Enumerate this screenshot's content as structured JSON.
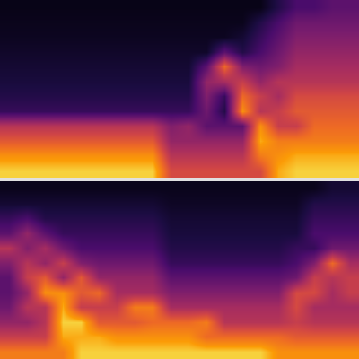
{
  "chart_data": [
    {
      "type": "heatmap",
      "tick_labels": false,
      "zlim": [
        0,
        1
      ],
      "cells": [
        [
          0.04,
          0.04,
          0.04,
          0.04,
          0.04,
          0.04,
          0.04,
          0.04,
          0.04,
          0.04,
          0.04,
          0.04,
          0.04,
          0.04,
          0.04,
          0.15,
          0.25,
          0.25,
          0.3,
          0.3
        ],
        [
          0.05,
          0.05,
          0.05,
          0.05,
          0.05,
          0.05,
          0.05,
          0.05,
          0.05,
          0.05,
          0.05,
          0.05,
          0.05,
          0.05,
          0.15,
          0.25,
          0.35,
          0.35,
          0.35,
          0.35
        ],
        [
          0.06,
          0.06,
          0.06,
          0.06,
          0.06,
          0.06,
          0.06,
          0.06,
          0.06,
          0.06,
          0.06,
          0.06,
          0.06,
          0.1,
          0.2,
          0.3,
          0.4,
          0.4,
          0.4,
          0.4
        ],
        [
          0.08,
          0.08,
          0.08,
          0.08,
          0.08,
          0.08,
          0.08,
          0.08,
          0.08,
          0.08,
          0.08,
          0.08,
          0.3,
          0.15,
          0.25,
          0.35,
          0.45,
          0.45,
          0.45,
          0.45
        ],
        [
          0.1,
          0.1,
          0.1,
          0.1,
          0.1,
          0.1,
          0.1,
          0.1,
          0.1,
          0.1,
          0.1,
          0.3,
          0.75,
          0.4,
          0.35,
          0.4,
          0.5,
          0.5,
          0.5,
          0.5
        ],
        [
          0.12,
          0.12,
          0.12,
          0.12,
          0.12,
          0.12,
          0.12,
          0.12,
          0.12,
          0.12,
          0.12,
          0.45,
          0.5,
          0.6,
          0.45,
          0.55,
          0.55,
          0.55,
          0.55,
          0.55
        ],
        [
          0.15,
          0.15,
          0.15,
          0.15,
          0.15,
          0.15,
          0.15,
          0.15,
          0.15,
          0.15,
          0.15,
          0.4,
          0.2,
          0.75,
          0.6,
          0.5,
          0.65,
          0.65,
          0.65,
          0.65
        ],
        [
          0.2,
          0.2,
          0.2,
          0.2,
          0.2,
          0.2,
          0.2,
          0.2,
          0.2,
          0.2,
          0.2,
          0.35,
          0.15,
          0.85,
          0.55,
          0.6,
          0.7,
          0.7,
          0.7,
          0.7
        ],
        [
          0.55,
          0.55,
          0.55,
          0.55,
          0.55,
          0.55,
          0.55,
          0.55,
          0.55,
          0.4,
          0.45,
          0.3,
          0.3,
          0.3,
          0.85,
          0.6,
          0.6,
          0.75,
          0.75,
          0.75
        ],
        [
          0.7,
          0.7,
          0.7,
          0.7,
          0.7,
          0.7,
          0.7,
          0.7,
          0.7,
          0.45,
          0.45,
          0.45,
          0.45,
          0.45,
          0.9,
          0.8,
          0.8,
          0.8,
          0.8,
          0.8
        ],
        [
          0.85,
          0.85,
          0.85,
          0.85,
          0.85,
          0.85,
          0.85,
          0.85,
          0.85,
          0.55,
          0.55,
          0.55,
          0.55,
          0.55,
          0.8,
          0.85,
          0.9,
          0.9,
          0.9,
          0.9
        ],
        [
          0.95,
          0.95,
          0.95,
          0.95,
          0.95,
          0.95,
          0.95,
          0.95,
          0.95,
          0.65,
          0.65,
          0.65,
          0.65,
          0.65,
          0.65,
          0.9,
          0.95,
          0.95,
          0.95,
          0.95
        ]
      ]
    },
    {
      "type": "heatmap",
      "tick_labels": false,
      "zlim": [
        0,
        1
      ],
      "cells": [
        [
          0.05,
          0.05,
          0.05,
          0.05,
          0.05,
          0.05,
          0.05,
          0.05,
          0.05,
          0.05,
          0.05,
          0.05,
          0.05,
          0.05,
          0.05,
          0.05,
          0.05,
          0.05,
          0.1,
          0.1
        ],
        [
          0.1,
          0.1,
          0.1,
          0.1,
          0.1,
          0.1,
          0.1,
          0.1,
          0.1,
          0.07,
          0.07,
          0.07,
          0.07,
          0.07,
          0.07,
          0.07,
          0.07,
          0.15,
          0.15,
          0.15
        ],
        [
          0.2,
          0.25,
          0.15,
          0.15,
          0.15,
          0.15,
          0.15,
          0.15,
          0.15,
          0.1,
          0.1,
          0.1,
          0.1,
          0.1,
          0.1,
          0.1,
          0.1,
          0.2,
          0.2,
          0.2
        ],
        [
          0.3,
          0.45,
          0.3,
          0.2,
          0.2,
          0.2,
          0.2,
          0.2,
          0.2,
          0.12,
          0.12,
          0.12,
          0.12,
          0.12,
          0.12,
          0.12,
          0.12,
          0.25,
          0.25,
          0.25
        ],
        [
          0.55,
          0.4,
          0.5,
          0.35,
          0.25,
          0.25,
          0.25,
          0.25,
          0.25,
          0.15,
          0.15,
          0.15,
          0.15,
          0.15,
          0.15,
          0.15,
          0.2,
          0.2,
          0.35,
          0.35
        ],
        [
          0.4,
          0.55,
          0.45,
          0.6,
          0.4,
          0.35,
          0.35,
          0.35,
          0.35,
          0.2,
          0.2,
          0.2,
          0.2,
          0.2,
          0.2,
          0.2,
          0.25,
          0.4,
          0.75,
          0.5
        ],
        [
          0.3,
          0.6,
          0.7,
          0.45,
          0.7,
          0.45,
          0.45,
          0.45,
          0.45,
          0.3,
          0.3,
          0.3,
          0.3,
          0.3,
          0.3,
          0.3,
          0.35,
          0.6,
          0.55,
          0.6
        ],
        [
          0.3,
          0.45,
          0.85,
          0.85,
          0.7,
          0.75,
          0.5,
          0.5,
          0.5,
          0.4,
          0.4,
          0.4,
          0.4,
          0.4,
          0.4,
          0.4,
          0.65,
          0.65,
          0.5,
          0.6
        ],
        [
          0.35,
          0.55,
          0.55,
          0.9,
          0.6,
          0.6,
          0.6,
          0.8,
          0.8,
          0.5,
          0.5,
          0.5,
          0.5,
          0.5,
          0.5,
          0.5,
          0.65,
          0.5,
          0.5,
          0.5
        ],
        [
          0.45,
          0.45,
          0.55,
          0.95,
          0.95,
          0.7,
          0.7,
          0.7,
          0.75,
          0.75,
          0.75,
          0.8,
          0.55,
          0.55,
          0.55,
          0.55,
          0.6,
          0.55,
          0.55,
          0.55
        ],
        [
          0.6,
          0.6,
          0.6,
          0.9,
          0.9,
          0.9,
          0.85,
          0.85,
          0.85,
          0.85,
          0.85,
          0.75,
          0.75,
          0.75,
          0.75,
          0.75,
          0.7,
          0.7,
          0.7,
          0.7
        ],
        [
          0.8,
          0.8,
          0.8,
          0.8,
          0.95,
          0.95,
          0.95,
          0.95,
          0.95,
          0.95,
          0.95,
          0.95,
          0.95,
          0.95,
          0.95,
          0.85,
          0.85,
          0.85,
          0.85,
          0.85
        ]
      ]
    }
  ]
}
